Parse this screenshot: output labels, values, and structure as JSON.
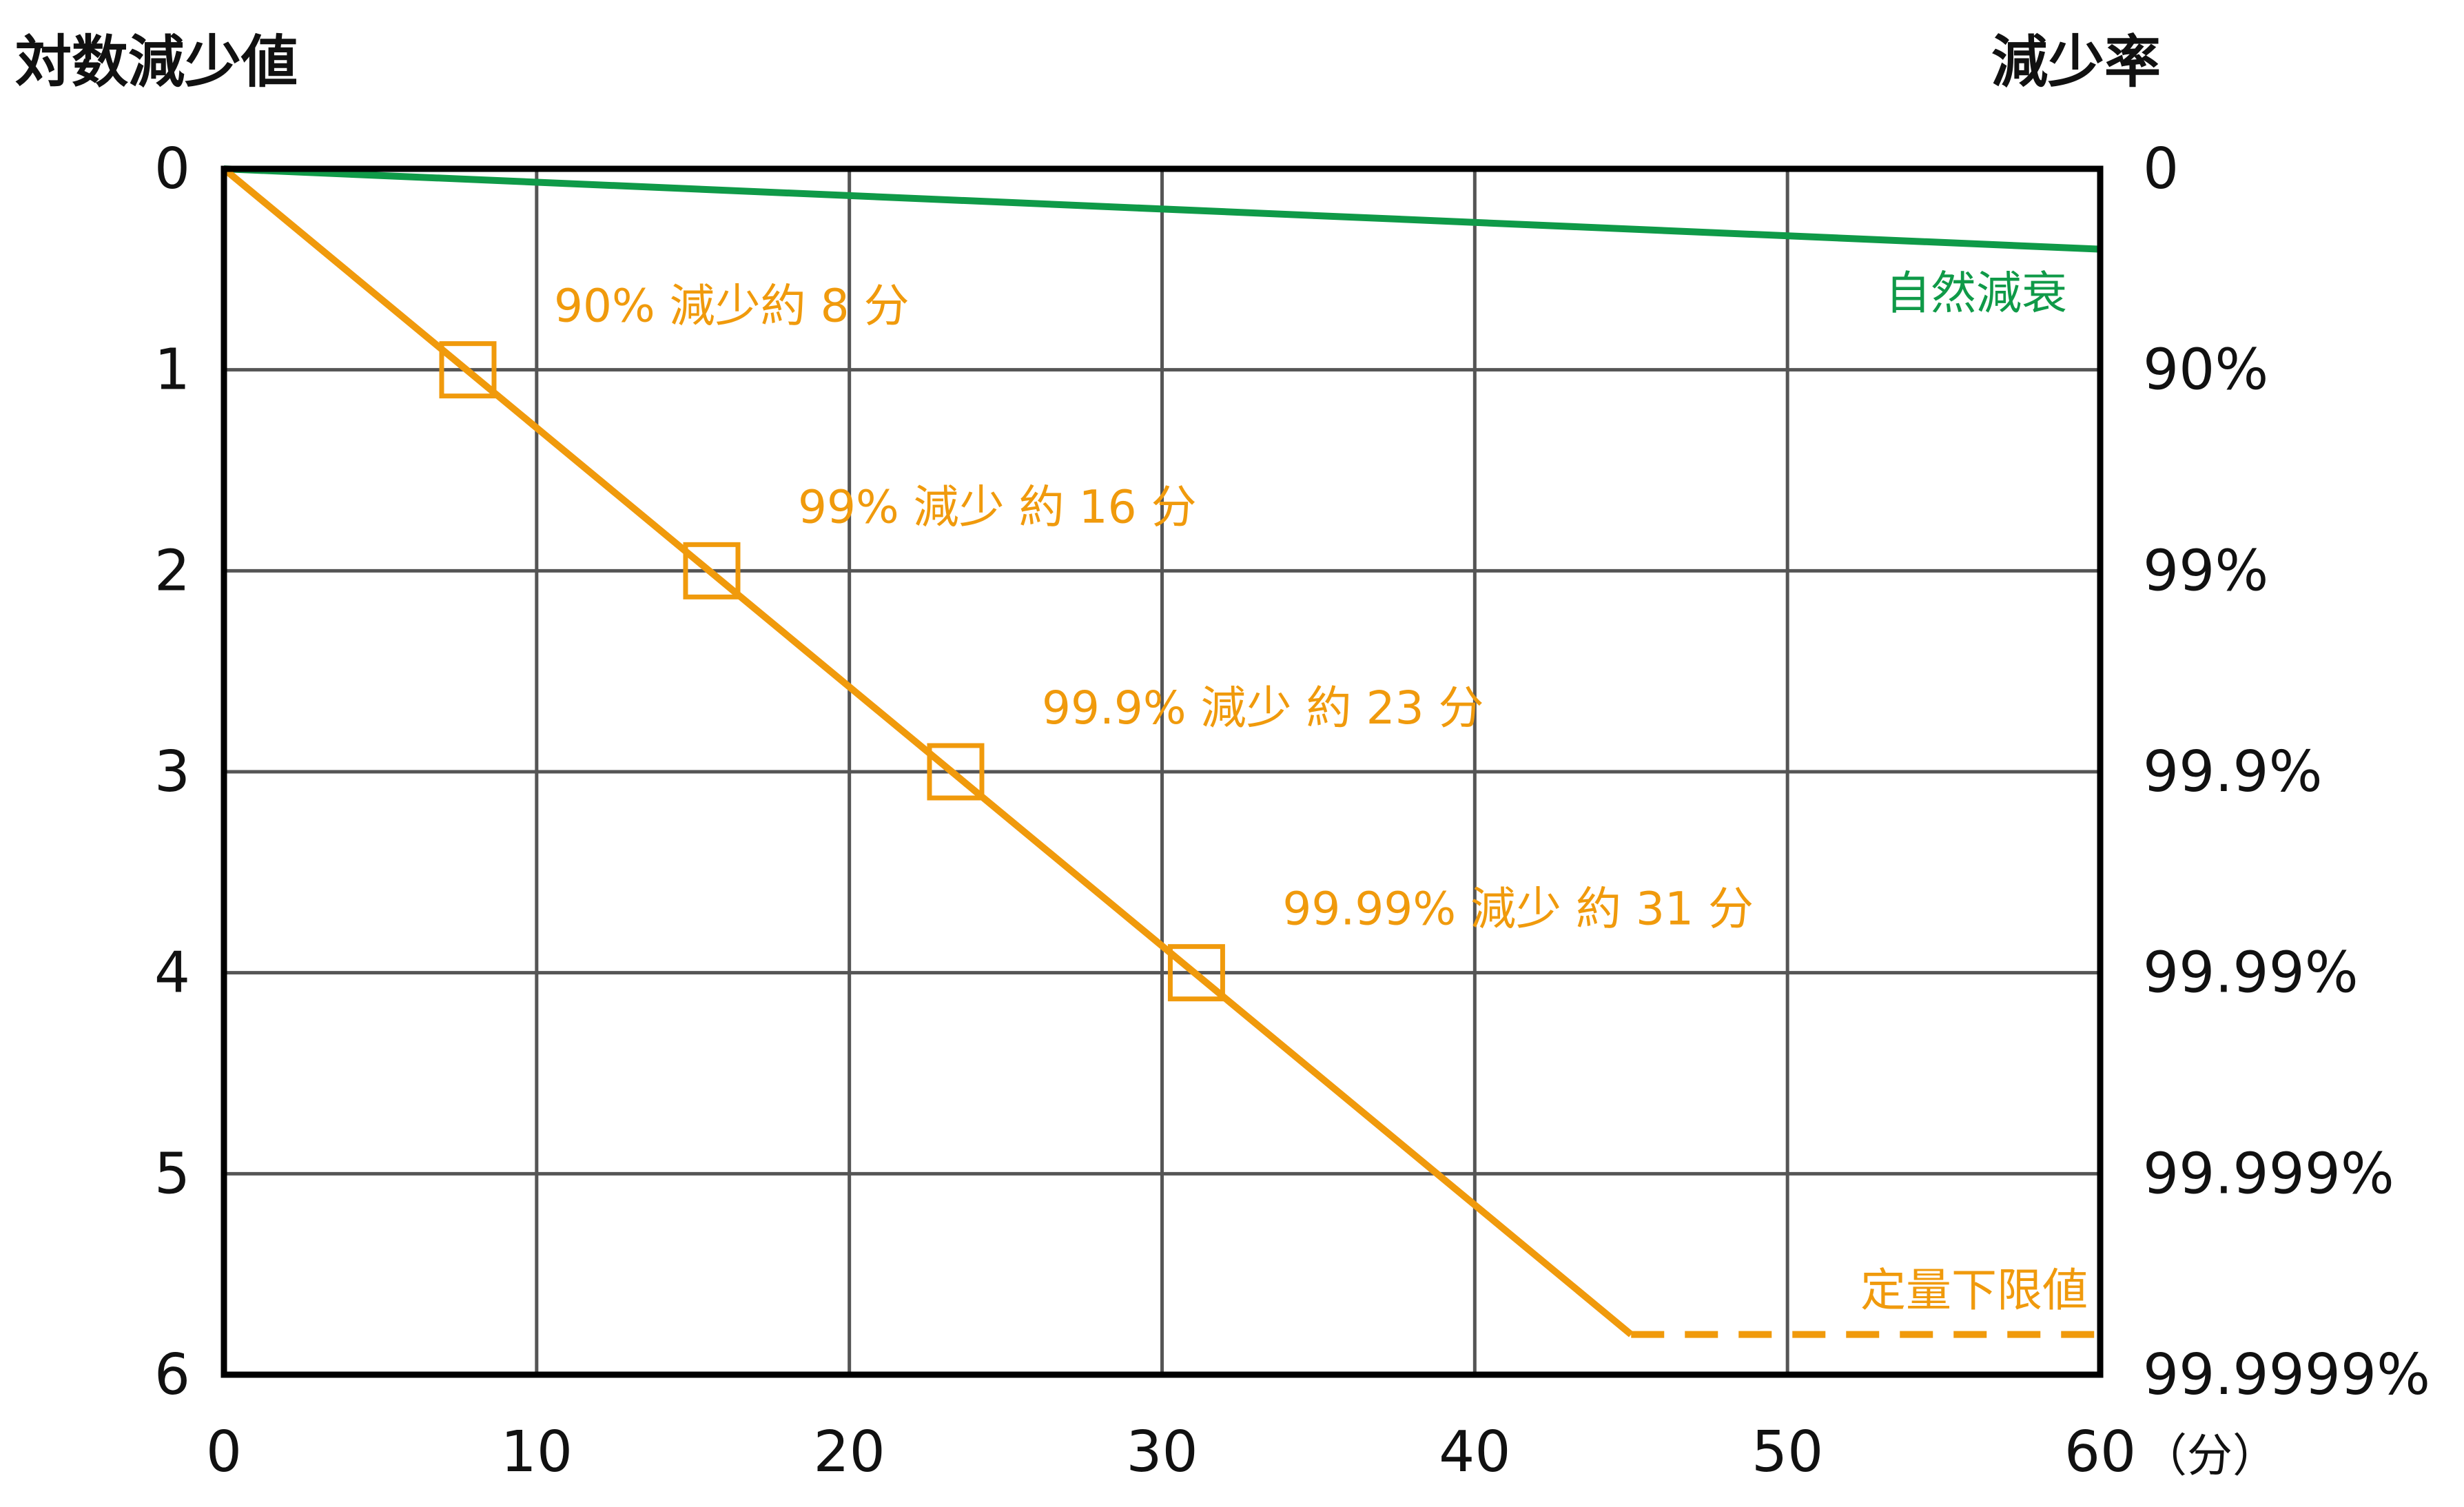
{
  "chart_data": {
    "type": "line",
    "left_axis_title": "対数減少値",
    "right_axis_title": "減少率",
    "x_unit_label": "（分）",
    "x_ticks": [
      "0",
      "10",
      "20",
      "30",
      "40",
      "50",
      "60"
    ],
    "y_ticks": [
      "0",
      "1",
      "2",
      "3",
      "4",
      "5",
      "6"
    ],
    "right_ticks": [
      "0",
      "90%",
      "99%",
      "99.9%",
      "99.99%",
      "99.999%",
      "99.9999%"
    ],
    "xlim": [
      0,
      60
    ],
    "ylim": [
      0,
      6
    ],
    "y_inverted": true,
    "grid": true,
    "series": [
      {
        "name": "自然減衰",
        "color": "#0f9a48",
        "x": [
          0,
          60
        ],
        "y": [
          0,
          0.4
        ]
      },
      {
        "name": "",
        "color": "#f09a0c",
        "x": [
          0,
          45
        ],
        "y": [
          0,
          5.8
        ]
      },
      {
        "name": "定量下限値",
        "color": "#f09a0c",
        "dashed": true,
        "x": [
          45,
          60
        ],
        "y": [
          5.8,
          5.8
        ]
      }
    ],
    "markers": [
      {
        "x": 7.8,
        "y": 1,
        "label": "90% 減少約  8 分"
      },
      {
        "x": 15.6,
        "y": 2,
        "label": "99% 減少  約 16 分"
      },
      {
        "x": 23.4,
        "y": 3,
        "label": "99.9% 減少  約 23 分"
      },
      {
        "x": 31.1,
        "y": 4,
        "label": "99.99% 減少  約 31 分"
      }
    ],
    "colors": {
      "decay": "#f09a0c",
      "natural": "#0f9a48",
      "grid": "#555555",
      "frame": "#000000"
    }
  }
}
